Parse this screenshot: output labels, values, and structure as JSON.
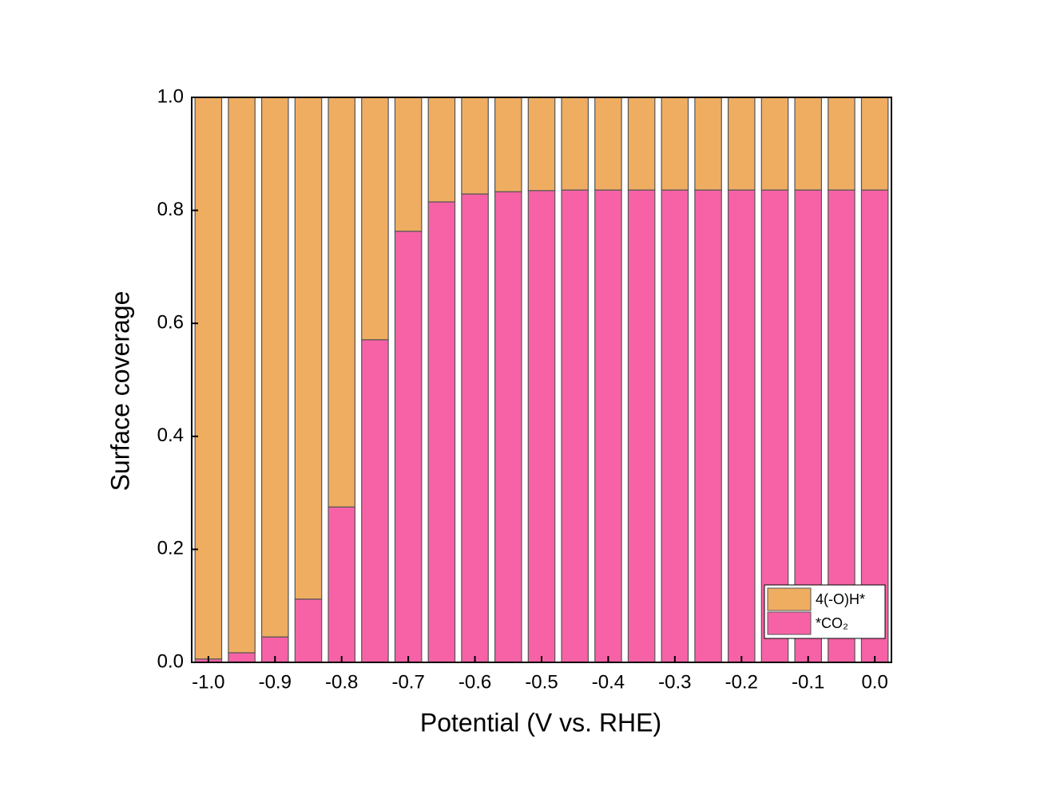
{
  "chart_data": {
    "type": "stacked_bar",
    "x_label": "Potential (V vs. RHE)",
    "y_label": "Surface coverage",
    "x": [
      -1.0,
      -0.95,
      -0.9,
      -0.85,
      -0.8,
      -0.75,
      -0.7,
      -0.65,
      -0.6,
      -0.55,
      -0.5,
      -0.45,
      -0.4,
      -0.35,
      -0.3,
      -0.25,
      -0.2,
      -0.15,
      -0.1,
      -0.05,
      0.0
    ],
    "series": [
      {
        "name": "*CO₂",
        "color": "#f762a6",
        "values": [
          0.006,
          0.017,
          0.045,
          0.112,
          0.275,
          0.571,
          0.763,
          0.815,
          0.829,
          0.833,
          0.835,
          0.836,
          0.836,
          0.836,
          0.836,
          0.836,
          0.836,
          0.836,
          0.836,
          0.836,
          0.836
        ]
      },
      {
        "name": "4(-O)H*",
        "color": "#efad62",
        "values": [
          0.994,
          0.983,
          0.955,
          0.888,
          0.725,
          0.429,
          0.237,
          0.185,
          0.171,
          0.167,
          0.165,
          0.164,
          0.164,
          0.164,
          0.164,
          0.164,
          0.164,
          0.164,
          0.164,
          0.164,
          0.164
        ]
      }
    ],
    "xlim": [
      -1.025,
      0.025
    ],
    "xticks": [
      {
        "value": -1.0,
        "label": "-1.0"
      },
      -0.9,
      -0.8,
      -0.7,
      -0.6,
      -0.5,
      -0.4,
      -0.3,
      -0.2,
      -0.1,
      {
        "value": 0,
        "label": "0.0"
      }
    ],
    "ylim": [
      0,
      1
    ],
    "yticks": [
      {
        "value": 0,
        "label": "0.0"
      },
      0.2,
      0.4,
      0.6,
      0.8,
      {
        "value": 1,
        "label": "1.0"
      }
    ],
    "legend": "lower right"
  }
}
